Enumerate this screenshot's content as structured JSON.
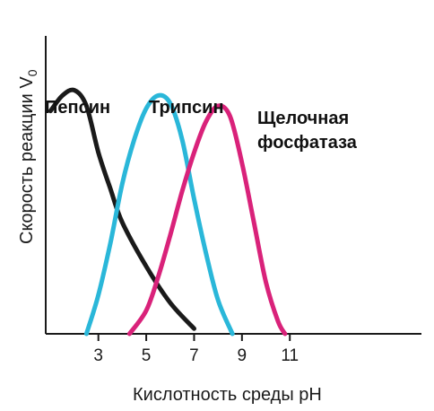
{
  "chart_data": {
    "type": "line",
    "xlabel": "Кислотность среды pH",
    "ylabel_main": "Скорость реакции V",
    "ylabel_sub": "0",
    "xticks": [
      3,
      5,
      7,
      9,
      11
    ],
    "xlim": [
      0.8,
      16.5
    ],
    "ylim": [
      0,
      1.15
    ],
    "grid": false,
    "legend": "none",
    "series": [
      {
        "name": "Пепсин",
        "color": "#1a1a1a",
        "points": [
          [
            1.0,
            0.86
          ],
          [
            1.5,
            0.92
          ],
          [
            2.0,
            0.94
          ],
          [
            2.5,
            0.88
          ],
          [
            3.0,
            0.7
          ],
          [
            3.5,
            0.56
          ],
          [
            4.0,
            0.43
          ],
          [
            5.0,
            0.26
          ],
          [
            6.0,
            0.12
          ],
          [
            7.0,
            0.02
          ]
        ]
      },
      {
        "name": "Трипсин",
        "color": "#2ab7d9",
        "points": [
          [
            2.5,
            0.0
          ],
          [
            3.0,
            0.15
          ],
          [
            3.5,
            0.35
          ],
          [
            4.0,
            0.58
          ],
          [
            4.5,
            0.75
          ],
          [
            5.0,
            0.87
          ],
          [
            5.5,
            0.92
          ],
          [
            6.0,
            0.89
          ],
          [
            6.5,
            0.75
          ],
          [
            7.0,
            0.52
          ],
          [
            7.5,
            0.31
          ],
          [
            8.0,
            0.13
          ],
          [
            8.6,
            0.0
          ]
        ]
      },
      {
        "name_line1": "Щелочная",
        "name_line2": "фосфатаза",
        "color": "#d9227a",
        "points": [
          [
            4.3,
            0.0
          ],
          [
            5.0,
            0.09
          ],
          [
            5.5,
            0.22
          ],
          [
            6.0,
            0.38
          ],
          [
            6.5,
            0.55
          ],
          [
            7.0,
            0.7
          ],
          [
            7.5,
            0.82
          ],
          [
            8.0,
            0.88
          ],
          [
            8.5,
            0.84
          ],
          [
            9.0,
            0.66
          ],
          [
            9.5,
            0.43
          ],
          [
            10.0,
            0.2
          ],
          [
            10.5,
            0.05
          ],
          [
            10.8,
            0.0
          ]
        ]
      }
    ]
  }
}
